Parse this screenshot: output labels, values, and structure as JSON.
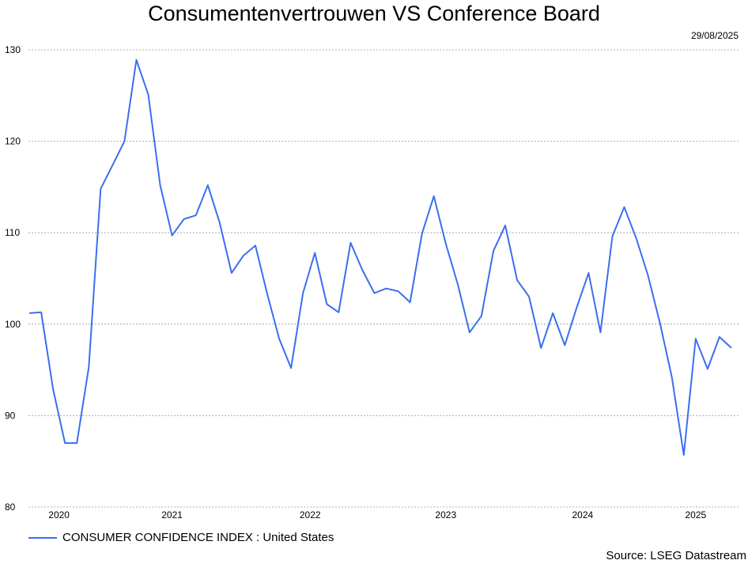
{
  "title": "Consumentenvertrouwen VS Conference Board",
  "date": "29/08/2025",
  "source": "Source: LSEG Datastream",
  "colors": {
    "series": "#3b6ef0",
    "grid": "#999999"
  },
  "chart_data": {
    "type": "line",
    "title": "Consumentenvertrouwen VS Conference Board",
    "xlabel": "",
    "ylabel": "",
    "ylim": [
      80,
      130
    ],
    "yticks": [
      80,
      90,
      100,
      110,
      120,
      130
    ],
    "xticks": [
      "2020",
      "2021",
      "2022",
      "2023",
      "2024",
      "2025"
    ],
    "grid": true,
    "legend_position": "bottom-left",
    "series": [
      {
        "name": "CONSUMER CONFIDENCE INDEX : United States",
        "points": [
          [
            "2020-01",
            101.2
          ],
          [
            "2020-02",
            101.3
          ],
          [
            "2020-03",
            92.9
          ],
          [
            "2020-04",
            87.0
          ],
          [
            "2020-05",
            87.0
          ],
          [
            "2020-06",
            95.3
          ],
          [
            "2020-07",
            114.8
          ],
          [
            "2020-08",
            117.4
          ],
          [
            "2020-09",
            120.0
          ],
          [
            "2020-10",
            128.9
          ],
          [
            "2020-11",
            125.1
          ],
          [
            "2020-12",
            115.2
          ],
          [
            "2021-01",
            109.7
          ],
          [
            "2021-02",
            111.5
          ],
          [
            "2021-03",
            111.9
          ],
          [
            "2021-04",
            115.2
          ],
          [
            "2021-05",
            111.1
          ],
          [
            "2021-06",
            105.6
          ],
          [
            "2021-07",
            107.5
          ],
          [
            "2021-08",
            108.6
          ],
          [
            "2021-09",
            103.3
          ],
          [
            "2021-10",
            98.4
          ],
          [
            "2021-11",
            95.2
          ],
          [
            "2021-12",
            103.4
          ],
          [
            "2022-01",
            107.8
          ],
          [
            "2022-02",
            102.2
          ],
          [
            "2022-03",
            101.3
          ],
          [
            "2022-04",
            108.9
          ],
          [
            "2022-05",
            105.9
          ],
          [
            "2022-06",
            103.4
          ],
          [
            "2022-07",
            103.9
          ],
          [
            "2022-08",
            103.6
          ],
          [
            "2022-09",
            102.4
          ],
          [
            "2022-10",
            109.9
          ],
          [
            "2022-11",
            114.0
          ],
          [
            "2022-12",
            108.8
          ],
          [
            "2023-01",
            104.4
          ],
          [
            "2023-02",
            99.1
          ],
          [
            "2023-03",
            100.9
          ],
          [
            "2023-04",
            108.0
          ],
          [
            "2023-05",
            110.8
          ],
          [
            "2023-06",
            104.8
          ],
          [
            "2023-07",
            103.0
          ],
          [
            "2023-08",
            97.4
          ],
          [
            "2023-09",
            101.2
          ],
          [
            "2023-10",
            97.7
          ],
          [
            "2023-11",
            101.8
          ],
          [
            "2023-12",
            105.6
          ],
          [
            "2024-01",
            99.1
          ],
          [
            "2024-02",
            109.6
          ],
          [
            "2024-03",
            112.8
          ],
          [
            "2024-04",
            109.4
          ],
          [
            "2024-05",
            105.3
          ],
          [
            "2024-06",
            100.1
          ],
          [
            "2024-07",
            94.2
          ],
          [
            "2024-08",
            85.7
          ],
          [
            "2024-09",
            98.4
          ],
          [
            "2024-10",
            95.1
          ],
          [
            "2024-11",
            98.6
          ],
          [
            "2024-12",
            97.4
          ]
        ]
      }
    ]
  }
}
